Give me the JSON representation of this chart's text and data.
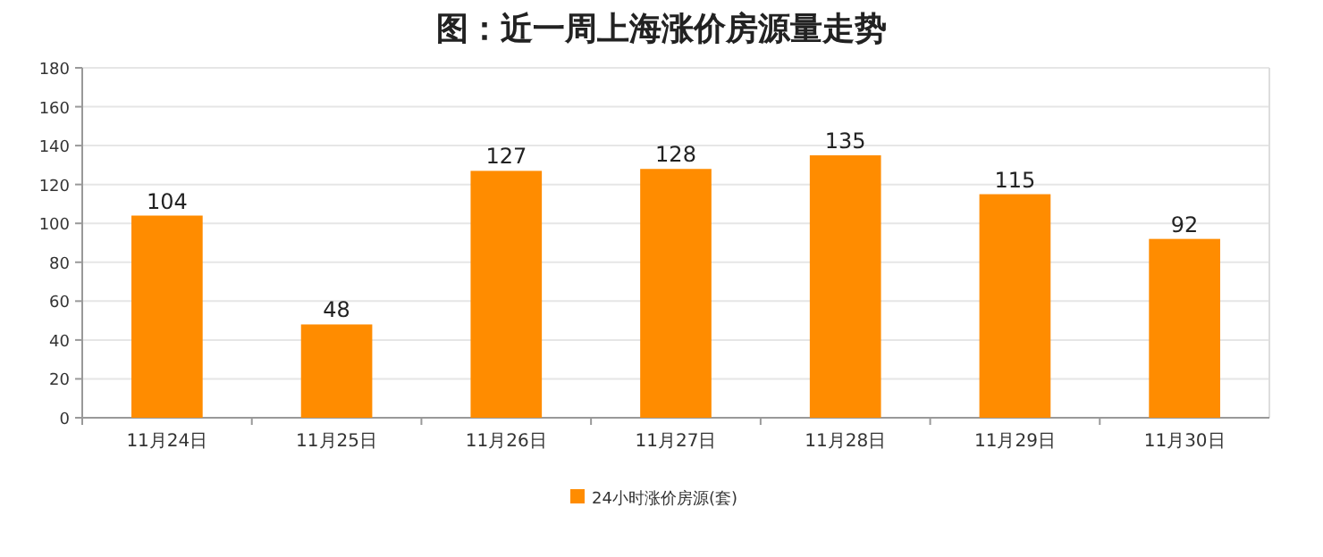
{
  "chart_data": {
    "type": "bar",
    "title": "图：近一周上海涨价房源量走势",
    "categories": [
      "11月24日",
      "11月25日",
      "11月26日",
      "11月27日",
      "11月28日",
      "11月29日",
      "11月30日"
    ],
    "series": [
      {
        "name": "24小时涨价房源(套)",
        "color": "#ff8c00",
        "values": [
          104,
          48,
          127,
          128,
          135,
          115,
          92
        ]
      }
    ],
    "ylim": [
      0,
      180
    ],
    "yticks": [
      0,
      20,
      40,
      60,
      80,
      100,
      120,
      140,
      160,
      180
    ],
    "grid": "y",
    "legend": "bottom",
    "data_labels": true
  }
}
